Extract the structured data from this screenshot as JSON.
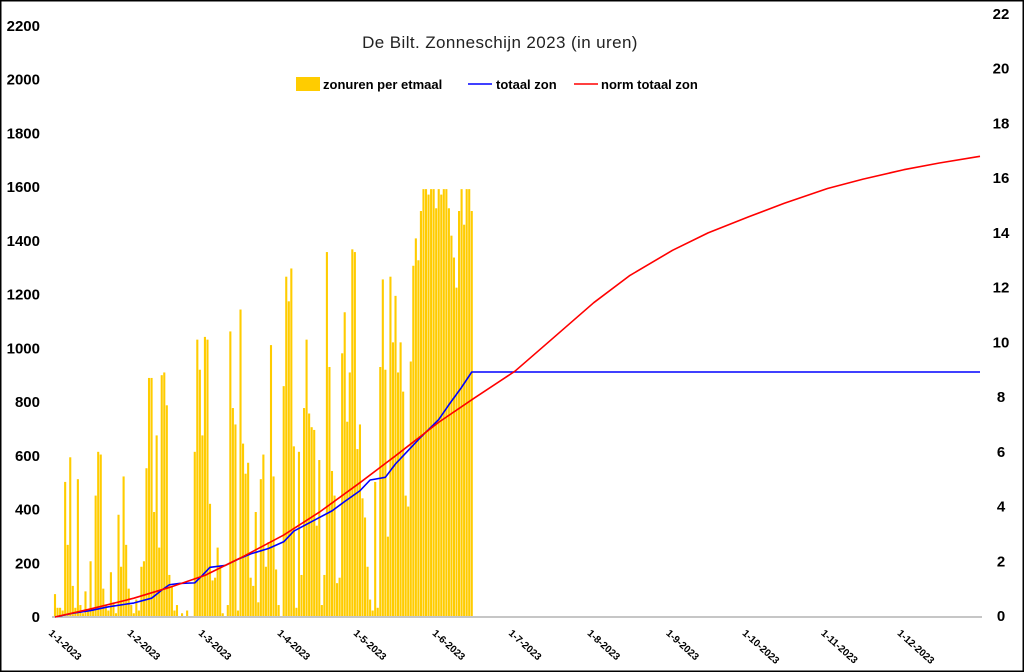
{
  "chart_data": {
    "type": "bar",
    "title": "De Bilt. Zonneschijn 2023 (in uren)",
    "legend": {
      "position": "top"
    },
    "grid": false,
    "y_left": {
      "range": [
        0,
        2200
      ],
      "ticks": [
        0,
        200,
        400,
        600,
        800,
        1000,
        1200,
        1400,
        1600,
        1800,
        2000,
        2200
      ]
    },
    "y_right": {
      "range": [
        0,
        22
      ],
      "ticks": [
        0,
        2,
        4,
        6,
        8,
        10,
        12,
        14,
        16,
        18,
        20,
        22
      ]
    },
    "x_axis": {
      "ticks": [
        "1-1-2023",
        "1-2-2023",
        "1-3-2023",
        "1-4-2023",
        "1-5-2023",
        "1-6-2023",
        "1-7-2023",
        "1-8-2023",
        "1-9-2023",
        "1-10-2023",
        "1-11-2023",
        "1-12-2023"
      ]
    },
    "series": [
      {
        "name": "zonuren per etmaal",
        "type": "bar",
        "axis": "right",
        "color": "#FFCC00",
        "x": [
          "1-1-2023",
          "2-1-2023",
          "3-1-2023",
          "4-1-2023",
          "5-1-2023",
          "6-1-2023",
          "7-1-2023",
          "8-1-2023",
          "9-1-2023",
          "10-1-2023",
          "11-1-2023",
          "12-1-2023",
          "13-1-2023",
          "14-1-2023",
          "15-1-2023",
          "16-1-2023",
          "17-1-2023",
          "18-1-2023",
          "19-1-2023",
          "20-1-2023",
          "21-1-2023",
          "22-1-2023",
          "23-1-2023",
          "24-1-2023",
          "25-1-2023",
          "26-1-2023",
          "27-1-2023",
          "28-1-2023",
          "29-1-2023",
          "30-1-2023",
          "31-1-2023",
          "1-2-2023",
          "2-2-2023",
          "3-2-2023",
          "4-2-2023",
          "5-2-2023",
          "6-2-2023",
          "7-2-2023",
          "8-2-2023",
          "9-2-2023",
          "10-2-2023",
          "11-2-2023",
          "12-2-2023",
          "13-2-2023",
          "14-2-2023",
          "15-2-2023",
          "16-2-2023",
          "17-2-2023",
          "18-2-2023",
          "19-2-2023",
          "20-2-2023",
          "21-2-2023",
          "22-2-2023",
          "23-2-2023",
          "24-2-2023",
          "25-2-2023",
          "26-2-2023",
          "27-2-2023",
          "28-2-2023",
          "1-3-2023",
          "2-3-2023",
          "3-3-2023",
          "4-3-2023",
          "5-3-2023",
          "6-3-2023",
          "7-3-2023",
          "8-3-2023",
          "9-3-2023",
          "10-3-2023",
          "11-3-2023",
          "12-3-2023",
          "13-3-2023",
          "14-3-2023",
          "15-3-2023",
          "16-3-2023",
          "17-3-2023",
          "18-3-2023",
          "19-3-2023",
          "20-3-2023",
          "21-3-2023",
          "22-3-2023",
          "23-3-2023",
          "24-3-2023",
          "25-3-2023",
          "26-3-2023",
          "27-3-2023",
          "28-3-2023",
          "29-3-2023",
          "30-3-2023",
          "31-3-2023",
          "1-4-2023",
          "2-4-2023",
          "3-4-2023",
          "4-4-2023",
          "5-4-2023",
          "6-4-2023",
          "7-4-2023",
          "8-4-2023",
          "9-4-2023",
          "10-4-2023",
          "11-4-2023",
          "12-4-2023",
          "13-4-2023",
          "14-4-2023",
          "15-4-2023",
          "16-4-2023",
          "17-4-2023",
          "18-4-2023",
          "19-4-2023",
          "20-4-2023",
          "21-4-2023",
          "22-4-2023",
          "23-4-2023",
          "24-4-2023",
          "25-4-2023",
          "26-4-2023",
          "27-4-2023",
          "28-4-2023",
          "29-4-2023",
          "30-4-2023",
          "1-5-2023",
          "2-5-2023",
          "3-5-2023",
          "4-5-2023",
          "5-5-2023",
          "6-5-2023",
          "7-5-2023",
          "8-5-2023",
          "9-5-2023",
          "10-5-2023",
          "11-5-2023",
          "12-5-2023",
          "13-5-2023",
          "14-5-2023",
          "15-5-2023",
          "16-5-2023",
          "17-5-2023",
          "18-5-2023",
          "19-5-2023",
          "20-5-2023",
          "21-5-2023",
          "22-5-2023",
          "23-5-2023",
          "24-5-2023",
          "25-5-2023",
          "26-5-2023",
          "27-5-2023",
          "28-5-2023",
          "29-5-2023",
          "30-5-2023",
          "31-5-2023",
          "1-6-2023",
          "2-6-2023",
          "3-6-2023",
          "4-6-2023",
          "5-6-2023",
          "6-6-2023",
          "7-6-2023",
          "8-6-2023",
          "9-6-2023",
          "10-6-2023",
          "11-6-2023",
          "12-6-2023",
          "13-6-2023",
          "14-6-2023"
        ],
        "values": [
          0.8,
          0.3,
          0.3,
          0.2,
          4.9,
          2.6,
          5.8,
          1.1,
          0.3,
          5.0,
          0.4,
          0.1,
          0.9,
          0.2,
          2.0,
          0.3,
          4.4,
          6.0,
          5.9,
          1.0,
          0.4,
          0.2,
          1.6,
          0.5,
          0.1,
          3.7,
          1.8,
          5.1,
          2.6,
          1.0,
          0.4,
          0.1,
          0.6,
          0.2,
          1.8,
          2.0,
          5.4,
          8.7,
          8.7,
          3.8,
          6.6,
          2.5,
          8.8,
          8.9,
          7.7,
          1.5,
          1.1,
          0.2,
          0.4,
          0.0,
          0.1,
          0.0,
          0.2,
          0.0,
          0.0,
          6.0,
          10.1,
          9.0,
          6.6,
          10.2,
          10.1,
          4.1,
          1.3,
          1.4,
          2.5,
          1.8,
          0.1,
          0.0,
          0.4,
          10.4,
          7.6,
          7.0,
          0.2,
          11.2,
          6.3,
          5.2,
          5.6,
          1.4,
          1.1,
          3.8,
          0.5,
          5.0,
          5.9,
          1.8,
          2.7,
          9.9,
          5.1,
          1.7,
          0.4,
          0.0,
          8.4,
          12.4,
          11.5,
          12.7,
          6.2,
          0.3,
          6.0,
          1.5,
          7.6,
          10.1,
          7.4,
          6.9,
          6.8,
          3.3,
          5.7,
          0.4,
          1.5,
          13.3,
          9.1,
          5.3,
          4.4,
          1.2,
          1.4,
          9.6,
          11.1,
          7.1,
          8.9,
          13.4,
          13.3,
          6.1,
          7.0,
          4.3,
          3.6,
          1.8,
          0.6,
          0.2,
          4.9,
          0.3,
          9.1,
          12.3,
          9.0,
          2.9,
          12.4,
          10.0,
          11.7,
          8.9,
          10.0,
          8.2,
          4.4,
          4.0,
          9.3,
          12.8,
          13.8,
          13.0,
          14.8,
          15.6,
          15.6,
          15.4,
          15.6,
          15.6,
          14.9,
          15.6,
          15.4,
          15.6,
          15.6,
          14.9,
          13.9,
          13.1,
          12.0,
          14.8,
          15.6,
          14.3,
          15.6,
          15.6,
          14.8
        ]
      },
      {
        "name": "totaal zon",
        "type": "line",
        "axis": "left",
        "color": "#0000FF",
        "points": [
          [
            "1-1-2023",
            0
          ],
          [
            "8-1-2023",
            14
          ],
          [
            "15-1-2023",
            24
          ],
          [
            "22-1-2023",
            38
          ],
          [
            "29-1-2023",
            48
          ],
          [
            "1-2-2023",
            52
          ],
          [
            "8-2-2023",
            70
          ],
          [
            "12-2-2023",
            100
          ],
          [
            "15-2-2023",
            120
          ],
          [
            "19-2-2023",
            125
          ],
          [
            "25-2-2023",
            127
          ],
          [
            "28-2-2023",
            155
          ],
          [
            "3-3-2023",
            185
          ],
          [
            "9-3-2023",
            192
          ],
          [
            "14-3-2023",
            215
          ],
          [
            "19-3-2023",
            235
          ],
          [
            "26-3-2023",
            255
          ],
          [
            "1-4-2023",
            280
          ],
          [
            "5-4-2023",
            320
          ],
          [
            "10-4-2023",
            345
          ],
          [
            "15-4-2023",
            370
          ],
          [
            "20-4-2023",
            395
          ],
          [
            "25-4-2023",
            430
          ],
          [
            "1-5-2023",
            470
          ],
          [
            "5-5-2023",
            510
          ],
          [
            "11-5-2023",
            520
          ],
          [
            "15-5-2023",
            570
          ],
          [
            "20-5-2023",
            620
          ],
          [
            "25-5-2023",
            670
          ],
          [
            "1-6-2023",
            735
          ],
          [
            "5-6-2023",
            790
          ],
          [
            "10-6-2023",
            855
          ],
          [
            "14-6-2023",
            912
          ],
          [
            "31-12-2023",
            912
          ]
        ]
      },
      {
        "name": "norm totaal zon",
        "type": "line",
        "axis": "left",
        "color": "#FF0000",
        "points": [
          [
            "1-1-2023",
            0
          ],
          [
            "15-1-2023",
            30
          ],
          [
            "1-2-2023",
            70
          ],
          [
            "15-2-2023",
            110
          ],
          [
            "1-3-2023",
            155
          ],
          [
            "15-3-2023",
            220
          ],
          [
            "1-4-2023",
            305
          ],
          [
            "15-4-2023",
            390
          ],
          [
            "1-5-2023",
            500
          ],
          [
            "15-5-2023",
            600
          ],
          [
            "1-6-2023",
            725
          ],
          [
            "15-6-2023",
            815
          ],
          [
            "1-7-2023",
            915
          ],
          [
            "15-7-2023",
            1030
          ],
          [
            "1-8-2023",
            1170
          ],
          [
            "15-8-2023",
            1270
          ],
          [
            "1-9-2023",
            1365
          ],
          [
            "15-9-2023",
            1430
          ],
          [
            "1-10-2023",
            1490
          ],
          [
            "15-10-2023",
            1540
          ],
          [
            "1-11-2023",
            1595
          ],
          [
            "15-11-2023",
            1630
          ],
          [
            "1-12-2023",
            1665
          ],
          [
            "15-12-2023",
            1690
          ],
          [
            "31-12-2023",
            1715
          ]
        ]
      }
    ]
  }
}
